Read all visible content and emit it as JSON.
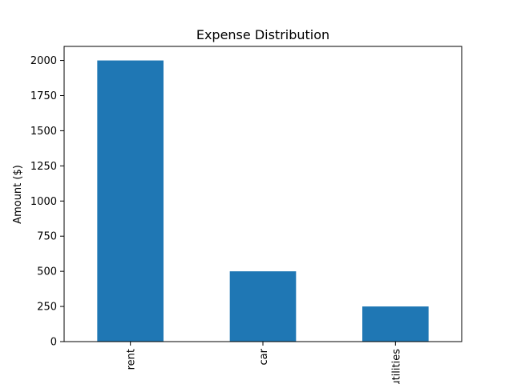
{
  "chart_data": {
    "type": "bar",
    "title": "Expense Distribution",
    "xlabel": "",
    "ylabel": "Amount ($)",
    "categories": [
      "rent",
      "car",
      "utilities"
    ],
    "values": [
      2000,
      500,
      250
    ],
    "ylim": [
      0,
      2100
    ],
    "yticks": [
      0,
      250,
      500,
      750,
      1000,
      1250,
      1500,
      1750,
      2000
    ],
    "bar_color": "#1f77b4",
    "grid": false,
    "legend": "none"
  }
}
